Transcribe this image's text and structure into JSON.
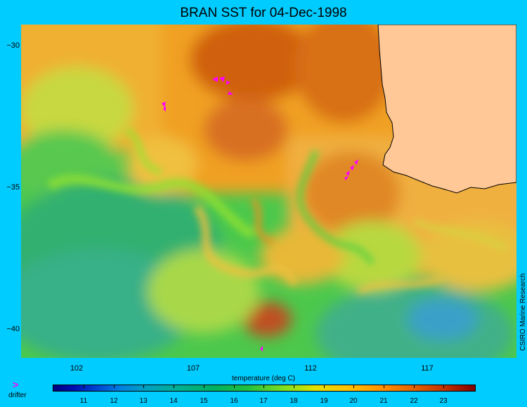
{
  "title": "BRAN SST for 04-Dec-1998",
  "y_axis": {
    "ticks": [
      "−30",
      "−35",
      "−40"
    ]
  },
  "x_axis": {
    "ticks": [
      "102",
      "107",
      "112",
      "117"
    ],
    "label": "temperature (deg C)"
  },
  "credit": "CSIRO Marine Research",
  "legend": {
    "symbol": ">",
    "label": "drifter"
  },
  "colorbar": {
    "ticks": [
      "11",
      "12",
      "13",
      "14",
      "15",
      "16",
      "17",
      "18",
      "19",
      "20",
      "21",
      "22",
      "23"
    ]
  },
  "colors": {
    "land": "#ffc896",
    "drifter": "#ff00ff",
    "frame_bg": "#00ccff"
  }
}
